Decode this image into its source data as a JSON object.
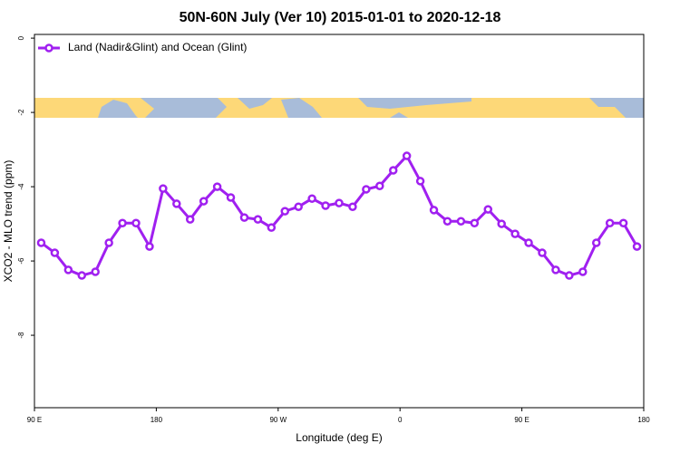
{
  "chart_data": {
    "type": "line",
    "title": "50N-60N July (Ver 10)   2015-01-01 to 2020-12-18",
    "xlabel": "Longitude (deg E)",
    "ylabel": "XCO2 - MLO trend (ppm)",
    "x": [
      95,
      105,
      115,
      125,
      135,
      145,
      155,
      165,
      175,
      185,
      195,
      205,
      215,
      225,
      235,
      245,
      255,
      265,
      275,
      285,
      295,
      305,
      315,
      325,
      335,
      345,
      355,
      365,
      375,
      385,
      395,
      405,
      415,
      425,
      435,
      445,
      455,
      465,
      475,
      485,
      495,
      505,
      515,
      525,
      535
    ],
    "series": [
      {
        "name": "Land (Nadir&Glint) and Ocean (Glint)",
        "color": "#a020f0",
        "values": [
          -5.51,
          -5.78,
          -6.24,
          -6.39,
          -6.29,
          -5.51,
          -4.98,
          -4.98,
          -5.61,
          -4.05,
          -4.46,
          -4.88,
          -4.39,
          -4.0,
          -4.29,
          -4.83,
          -4.88,
          -5.1,
          -4.66,
          -4.54,
          -4.32,
          -4.51,
          -4.44,
          -4.54,
          -4.07,
          -3.98,
          -3.56,
          -3.17,
          -3.85,
          -4.63,
          -4.93,
          -4.93,
          -4.98,
          -4.61,
          -5.0,
          -5.27,
          -5.51,
          -5.78,
          -6.24,
          -6.39,
          -6.29,
          -5.51,
          -4.98,
          -4.98,
          -5.61
        ]
      }
    ],
    "xlim": [
      90,
      540
    ],
    "xticks": [
      {
        "value": 90,
        "label": "90 E"
      },
      180,
      {
        "value": 270,
        "label": "90 W"
      },
      {
        "value": 360,
        "label": "0"
      },
      {
        "value": 450,
        "label": "90 E"
      },
      {
        "value": 540,
        "label": "180"
      }
    ],
    "ylim": [
      -9.95,
      0.1
    ],
    "yticks": [
      0,
      -2,
      -4,
      -6,
      -8
    ],
    "legend": "top-left"
  }
}
